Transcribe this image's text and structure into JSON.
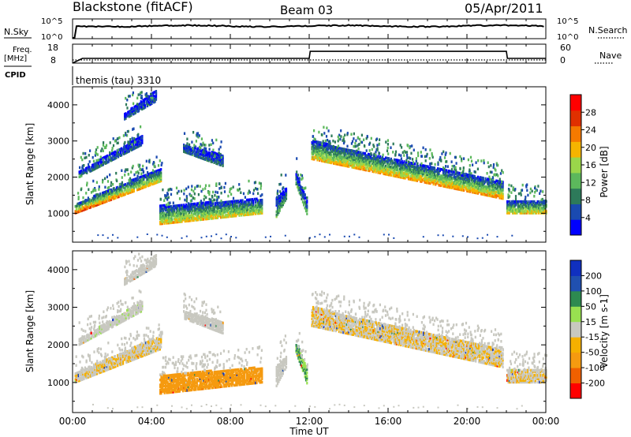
{
  "header": {
    "title": "Blackstone (fitACF)",
    "beam": "Beam 03",
    "date": "05/Apr/2011"
  },
  "noise_panel": {
    "left_label": "N.Sky",
    "right_label": "N.Search",
    "left_ticks": [
      "10^5",
      "10^0"
    ],
    "right_ticks": [
      "10^5",
      "10^0"
    ]
  },
  "freq_panel": {
    "left_label_1": "Freq.",
    "left_label_2": "[MHz]",
    "right_label": "Nave",
    "left_ticks": [
      "18",
      "8"
    ],
    "right_ticks": [
      "60",
      "0"
    ]
  },
  "cpid_panel": {
    "label": "CPID",
    "text": "themis (tau) 3310"
  },
  "power_panel": {
    "ylabel": "Slant Range [km]",
    "yticks": [
      "4000",
      "3000",
      "2000",
      "1000"
    ],
    "colorbar_label": "Power [dB]",
    "colorbar_ticks": [
      "28",
      "24",
      "20",
      "16",
      "12",
      "8",
      "4"
    ]
  },
  "velocity_panel": {
    "ylabel": "Slant Range [km]",
    "yticks": [
      "4000",
      "3000",
      "2000",
      "1000"
    ],
    "colorbar_label": "Velocity [m s-1]",
    "colorbar_ticks": [
      "200",
      "100",
      "50",
      "15",
      "-15",
      "-50",
      "-100",
      "-200"
    ]
  },
  "xaxis": {
    "label": "Time UT",
    "ticks": [
      "00:00",
      "04:00",
      "08:00",
      "12:00",
      "16:00",
      "20:00",
      "00:00"
    ]
  },
  "colors": {
    "power_scale": [
      "#0000ff",
      "#1a4ab0",
      "#2d7a5a",
      "#5cb85c",
      "#9ad64a",
      "#f5b400",
      "#f57a00",
      "#e03000",
      "#ff0000"
    ],
    "velocity_scale": [
      "#ff0000",
      "#f06000",
      "#f59a10",
      "#f5b000",
      "#c8c8c0",
      "#98e050",
      "#2d8a50",
      "#2050b0",
      "#1030c0"
    ]
  },
  "chart_data": {
    "type": "heatmap",
    "xlim_hours": [
      0,
      24
    ],
    "ylim_km": [
      200,
      4500
    ],
    "power_clim_db": [
      0,
      32
    ],
    "velocity_clim": [
      -250,
      250
    ],
    "frequency_mhz_x": [
      0,
      0.5,
      12,
      12.05,
      22,
      22.05,
      24
    ],
    "frequency_mhz_y": [
      8,
      10.5,
      10.5,
      14.2,
      14.2,
      10.5,
      10.5
    ],
    "nave_x": [
      0,
      24
    ],
    "nave_y": [
      10,
      10
    ],
    "echo_regions": [
      {
        "name": "main-band-early",
        "t": [
          0.1,
          4.5
        ],
        "r_start": [
          1000,
          1900
        ],
        "width": [
          250,
          350
        ],
        "power": [
          26,
          18
        ],
        "vel": -10
      },
      {
        "name": "upper-band-early",
        "t": [
          0.3,
          3.5
        ],
        "r_start": [
          2000,
          2900
        ],
        "width": [
          150,
          250
        ],
        "power": [
          10,
          6
        ],
        "vel": 5
      },
      {
        "name": "top-streak",
        "t": [
          2.6,
          4.2
        ],
        "r_start": [
          3600,
          4100
        ],
        "width": [
          150,
          300
        ],
        "power": [
          8,
          6
        ],
        "vel": 0
      },
      {
        "name": "morning-patch",
        "t": [
          4.4,
          9.6
        ],
        "r_start": [
          700,
          1000
        ],
        "width": [
          500,
          400
        ],
        "power": [
          20,
          18
        ],
        "vel": -60
      },
      {
        "name": "morning-upper",
        "t": [
          5.6,
          7.6
        ],
        "r_start": [
          2700,
          2300
        ],
        "width": [
          200,
          300
        ],
        "power": [
          8,
          8
        ],
        "vel": 0
      },
      {
        "name": "noon-streak-1",
        "t": [
          10.3,
          10.8
        ],
        "r_start": [
          900,
          1400
        ],
        "width": [
          500,
          300
        ],
        "power": [
          12,
          10
        ],
        "vel": 0
      },
      {
        "name": "noon-streak-2",
        "t": [
          11.3,
          11.9
        ],
        "r_start": [
          1800,
          900
        ],
        "width": [
          300,
          400
        ],
        "power": [
          12,
          12
        ],
        "vel": 30
      },
      {
        "name": "afternoon-band",
        "t": [
          12.1,
          21.8
        ],
        "r_start": [
          2500,
          1400
        ],
        "width": [
          500,
          450
        ],
        "power": [
          20,
          22
        ],
        "vel": -10
      },
      {
        "name": "late-band",
        "t": [
          22.0,
          24.0
        ],
        "r_start": [
          1000,
          1000
        ],
        "width": [
          350,
          350
        ],
        "power": [
          18,
          20
        ],
        "vel": -10
      }
    ]
  }
}
